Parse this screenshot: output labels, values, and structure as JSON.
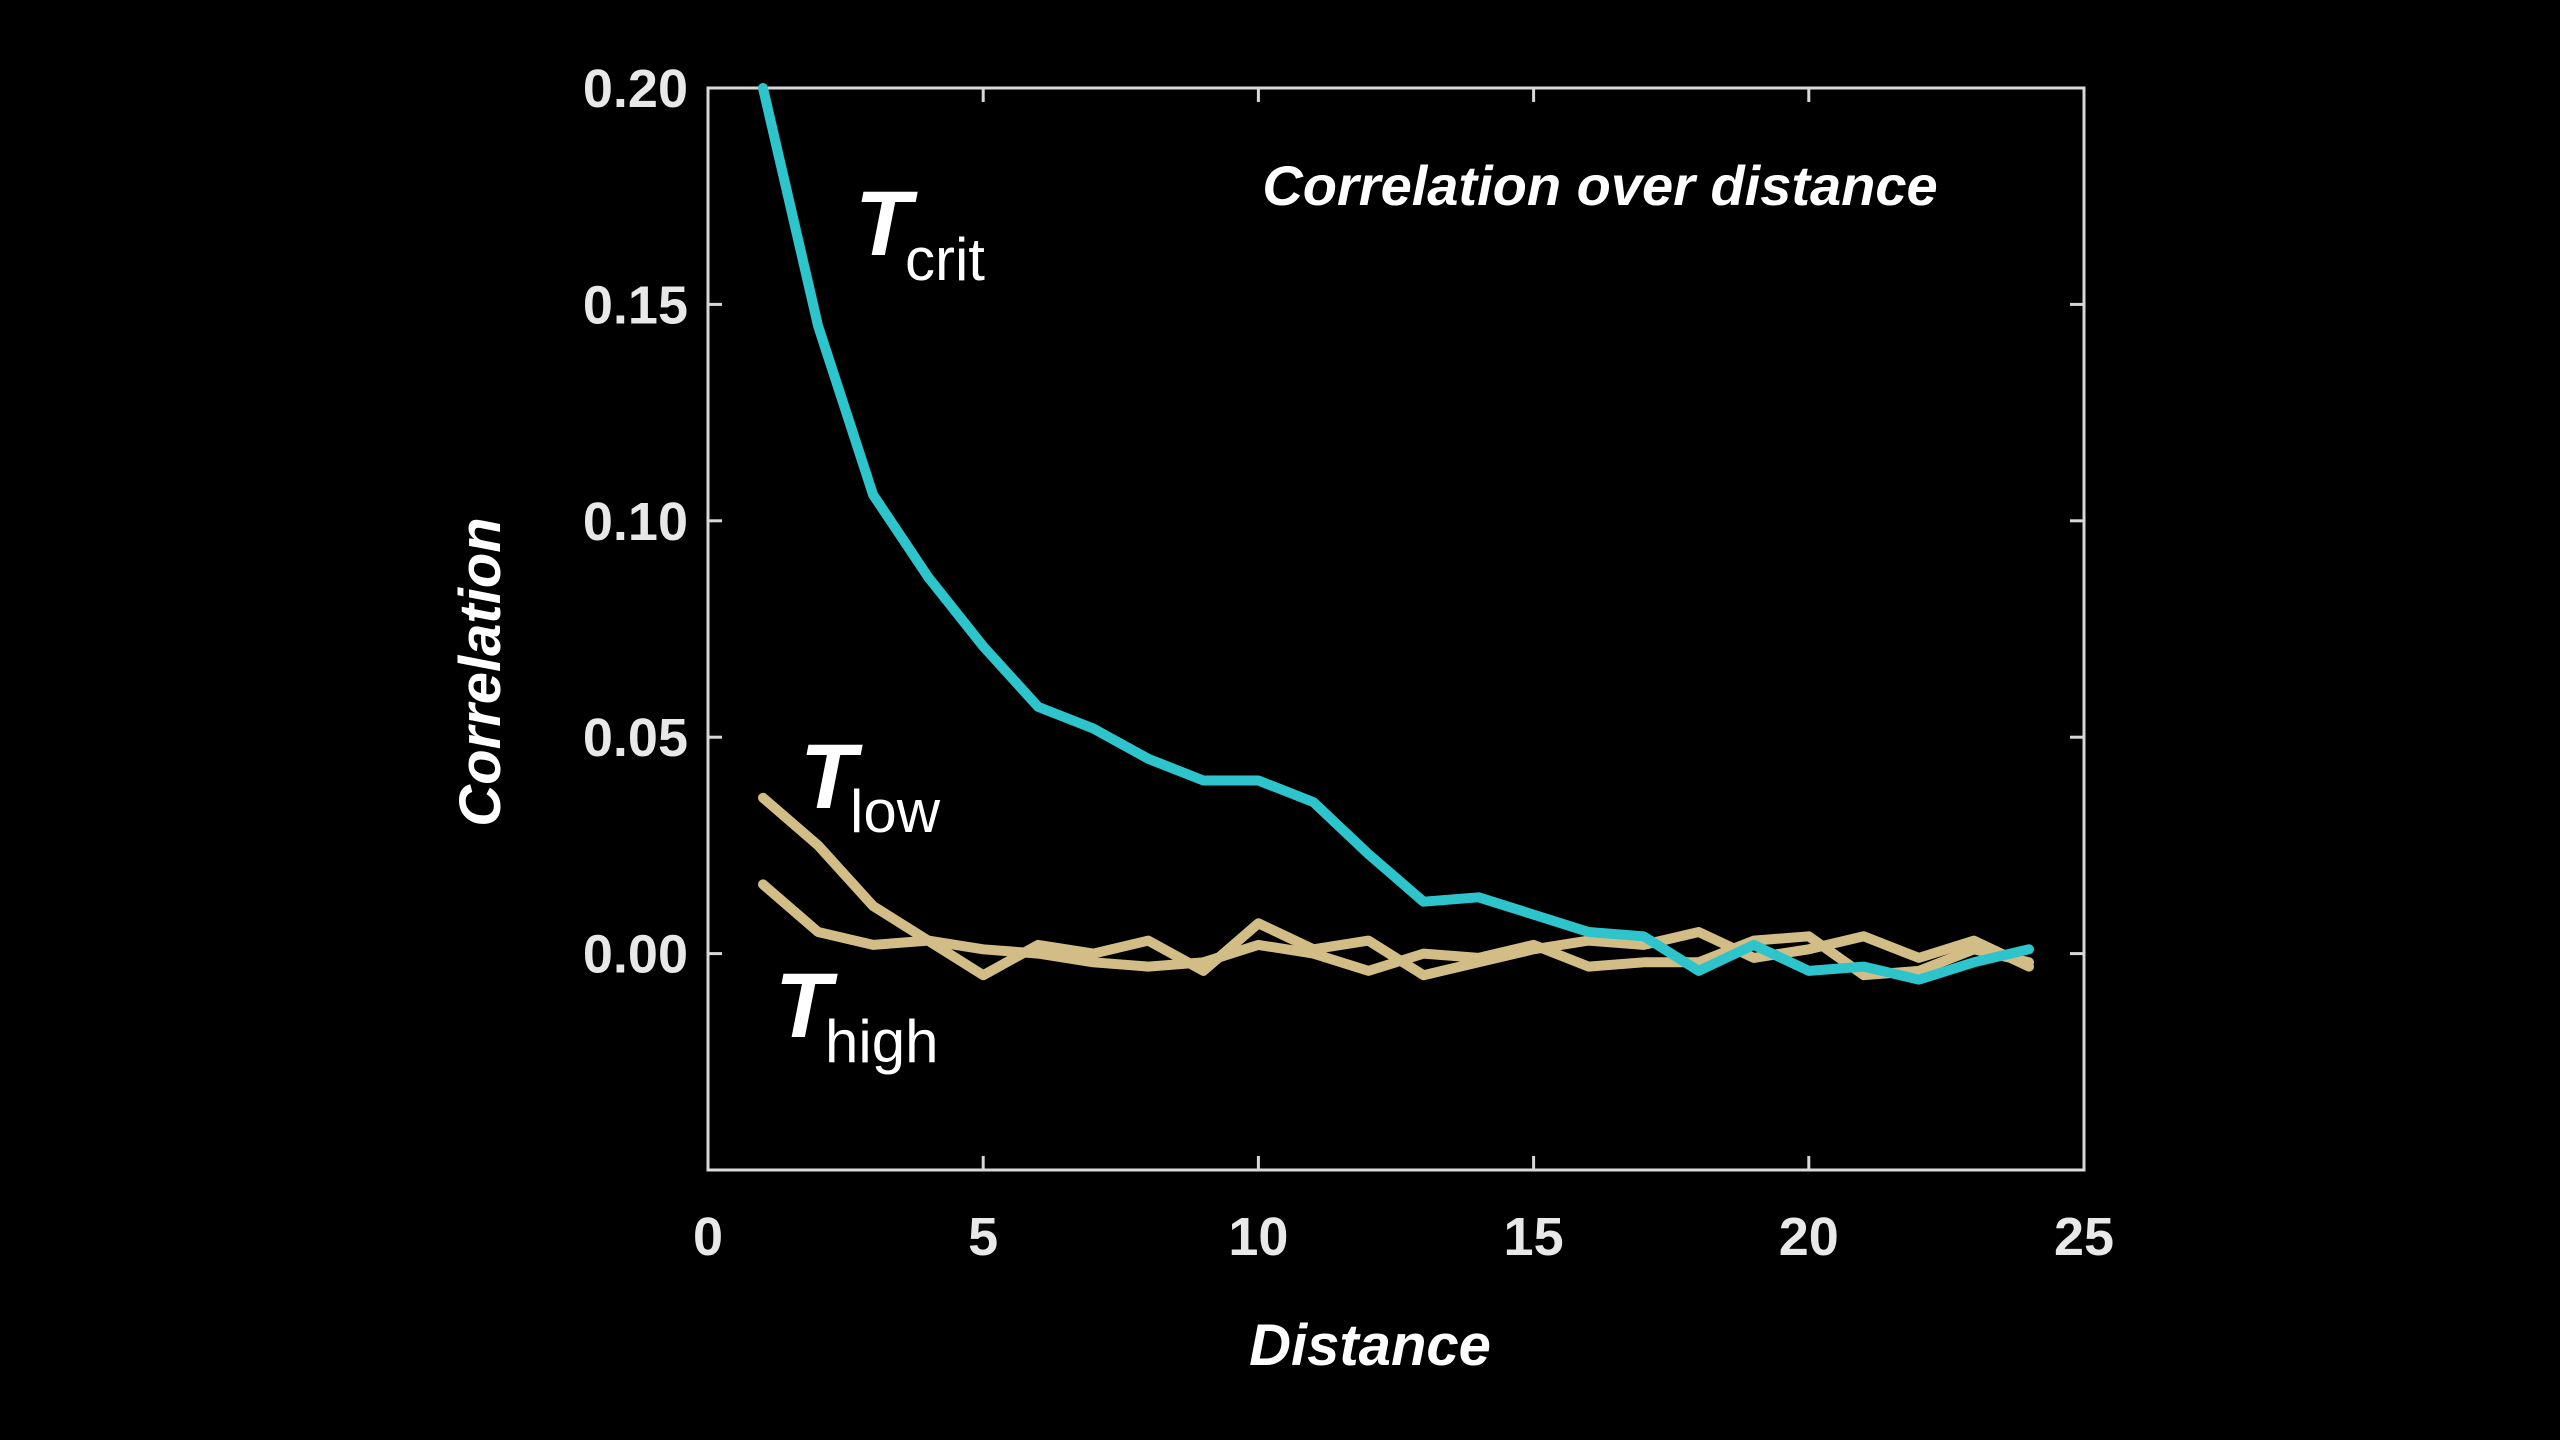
{
  "chart_data": {
    "type": "line",
    "title": "Correlation over distance",
    "xlabel": "Distance",
    "ylabel": "Correlation",
    "xlim": [
      0,
      25
    ],
    "ylim": [
      -0.05,
      0.2
    ],
    "x_ticks": [
      "0",
      "5",
      "10",
      "15",
      "20",
      "25"
    ],
    "y_ticks": [
      "0.00",
      "0.05",
      "0.10",
      "0.15",
      "0.20"
    ],
    "grid": false,
    "series": [
      {
        "name_main": "T",
        "name_sub": "crit",
        "color": "#2ec4cc",
        "x": [
          1,
          2,
          3,
          4,
          5,
          6,
          7,
          8,
          9,
          10,
          11,
          12,
          13,
          14,
          15,
          16,
          17,
          18,
          19,
          20,
          21,
          22,
          23,
          24
        ],
        "y": [
          0.2,
          0.145,
          0.106,
          0.087,
          0.071,
          0.057,
          0.052,
          0.045,
          0.04,
          0.04,
          0.035,
          0.023,
          0.012,
          0.013,
          0.009,
          0.005,
          0.004,
          -0.004,
          0.002,
          -0.004,
          -0.003,
          -0.006,
          -0.002,
          0.001
        ]
      },
      {
        "name_main": "T",
        "name_sub": "low",
        "color": "#d2bd86",
        "x": [
          1,
          2,
          3,
          4,
          5,
          6,
          7,
          8,
          9,
          10,
          11,
          12,
          13,
          14,
          15,
          16,
          17,
          18,
          19,
          20,
          21,
          22,
          23,
          24
        ],
        "y": [
          0.036,
          0.025,
          0.011,
          0.003,
          -0.005,
          0.002,
          0.0,
          0.003,
          -0.004,
          0.007,
          0.001,
          0.003,
          -0.005,
          -0.002,
          0.001,
          0.003,
          0.002,
          0.005,
          -0.001,
          0.001,
          0.004,
          -0.001,
          0.003,
          -0.003
        ]
      },
      {
        "name_main": "T",
        "name_sub": "high",
        "color": "#d2bd86",
        "x": [
          1,
          2,
          3,
          4,
          5,
          6,
          7,
          8,
          9,
          10,
          11,
          12,
          13,
          14,
          15,
          16,
          17,
          18,
          19,
          20,
          21,
          22,
          23,
          24
        ],
        "y": [
          0.016,
          0.005,
          0.002,
          0.003,
          0.001,
          0.0,
          -0.002,
          -0.003,
          -0.002,
          0.002,
          0.0,
          -0.004,
          0.0,
          -0.001,
          0.002,
          -0.003,
          -0.002,
          -0.002,
          0.003,
          0.004,
          -0.005,
          -0.004,
          0.001,
          -0.002
        ]
      }
    ]
  }
}
